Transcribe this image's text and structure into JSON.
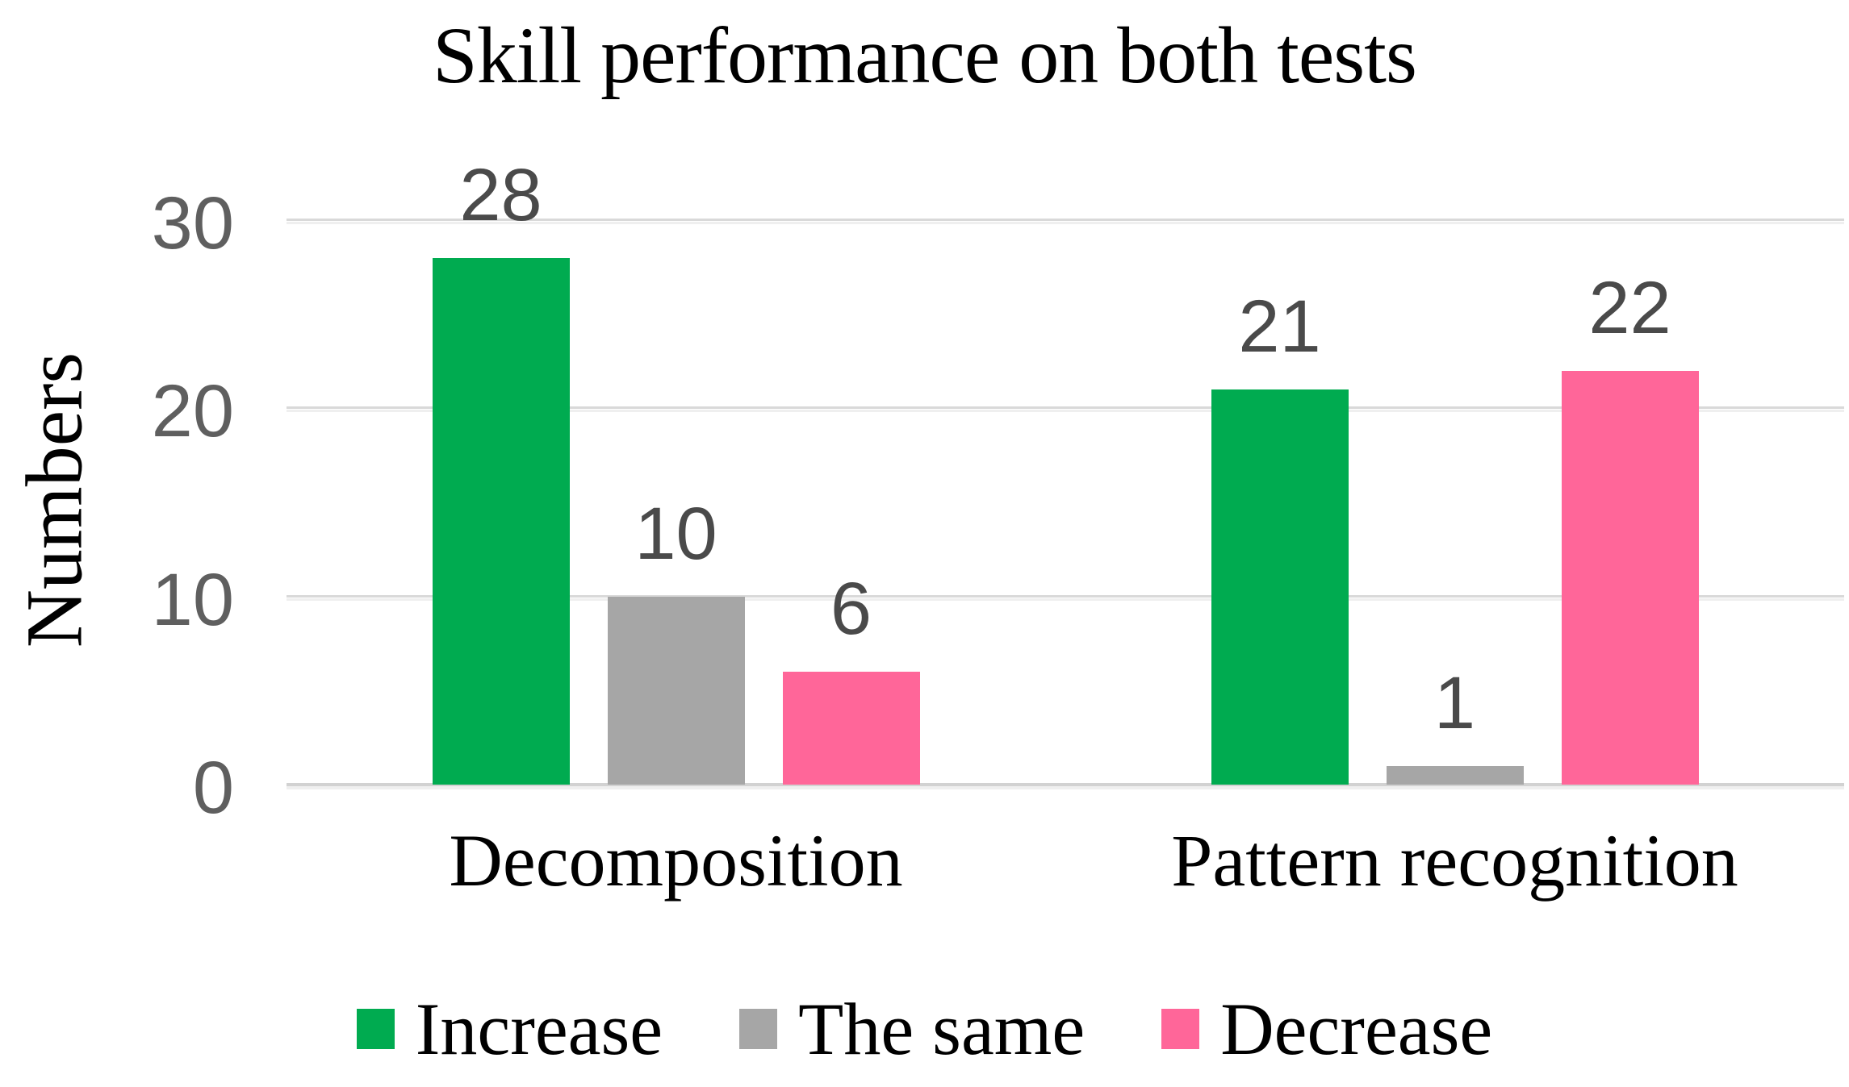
{
  "chart_data": {
    "type": "bar",
    "title": "Skill performance on both tests",
    "xlabel": "",
    "ylabel": "Numbers",
    "categories": [
      "Decomposition",
      "Pattern recognition"
    ],
    "series": [
      {
        "name": "Increase",
        "color": "#00ab50",
        "values": [
          28,
          21
        ]
      },
      {
        "name": "The same",
        "color": "#a6a6a6",
        "values": [
          10,
          1
        ]
      },
      {
        "name": "Decrease",
        "color": "#ff6699",
        "values": [
          6,
          22
        ]
      }
    ],
    "yticks": [
      0,
      10,
      20,
      30
    ],
    "ylim": [
      0,
      30
    ],
    "grid": true,
    "data_labels": true,
    "legend_position": "bottom"
  },
  "colors": {
    "background": "#ffffff",
    "gridline": "#d9d9d9",
    "tick_label": "#5f5f5f",
    "data_label": "#4a4a4a",
    "text": "#000000"
  }
}
